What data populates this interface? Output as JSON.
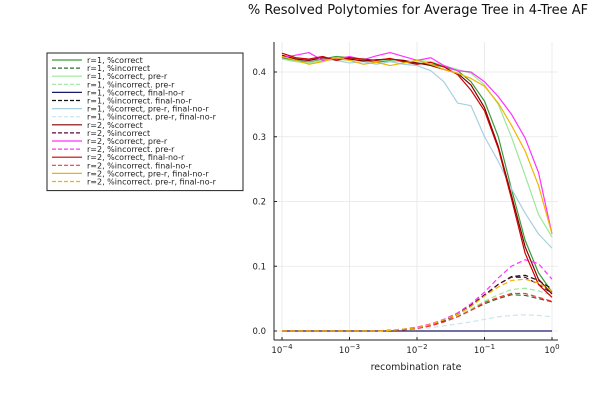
{
  "chart_data": {
    "type": "line",
    "title": "% Resolved Polytomies for Average Tree in 4-Tree AF",
    "xlabel": "recombination rate",
    "ylabel": "",
    "xscale": "log10",
    "xlim": [
      0.0001,
      1
    ],
    "ylim": [
      0,
      0.43
    ],
    "xticks": [
      {
        "value": 0.0001,
        "base": "10",
        "exp": "−4"
      },
      {
        "value": 0.001,
        "base": "10",
        "exp": "−3"
      },
      {
        "value": 0.01,
        "base": "10",
        "exp": "−2"
      },
      {
        "value": 0.1,
        "base": "10",
        "exp": "−1"
      },
      {
        "value": 1,
        "base": "10",
        "exp": "0"
      }
    ],
    "yticks": [
      "0.0",
      "0.1",
      "0.2",
      "0.3",
      "0.4"
    ],
    "ytick_values": [
      0,
      0.1,
      0.2,
      0.3,
      0.4
    ],
    "grid": true,
    "legend_position": "outside-left",
    "x": [
      0.0001,
      0.00016,
      0.00025,
      0.0004,
      0.00063,
      0.001,
      0.0016,
      0.0025,
      0.004,
      0.0063,
      0.01,
      0.016,
      0.025,
      0.04,
      0.063,
      0.1,
      0.16,
      0.25,
      0.4,
      0.63,
      1
    ],
    "series": [
      {
        "name": "r=1, %correct",
        "color": "#3a9a3a",
        "dash": "solid",
        "values": [
          0.422,
          0.418,
          0.416,
          0.42,
          0.424,
          0.422,
          0.418,
          0.415,
          0.418,
          0.416,
          0.414,
          0.412,
          0.408,
          0.402,
          0.385,
          0.355,
          0.3,
          0.22,
          0.14,
          0.09,
          0.06
        ]
      },
      {
        "name": "r=1, %incorrect",
        "color": "#2e6b2e",
        "dash": "dashed",
        "values": [
          0.0,
          0.0,
          0.0,
          0.0,
          0.0,
          0.0,
          0.0,
          0.0,
          0.001,
          0.002,
          0.004,
          0.008,
          0.014,
          0.022,
          0.032,
          0.042,
          0.05,
          0.056,
          0.055,
          0.05,
          0.045
        ]
      },
      {
        "name": "r=1, %correct, pre-r",
        "color": "#9be89b",
        "dash": "solid",
        "values": [
          0.42,
          0.416,
          0.414,
          0.418,
          0.42,
          0.418,
          0.421,
          0.417,
          0.419,
          0.415,
          0.418,
          0.416,
          0.41,
          0.404,
          0.398,
          0.38,
          0.35,
          0.3,
          0.24,
          0.18,
          0.145
        ]
      },
      {
        "name": "r=1, %incorrect. pre-r",
        "color": "#9be89b",
        "dash": "dashed",
        "values": [
          0.0,
          0.0,
          0.0,
          0.0,
          0.0,
          0.0,
          0.0,
          0.0,
          0.001,
          0.003,
          0.006,
          0.01,
          0.016,
          0.024,
          0.034,
          0.046,
          0.056,
          0.064,
          0.066,
          0.062,
          0.055
        ]
      },
      {
        "name": "r=1, %correct, final-no-r",
        "color": "#1a1a6e",
        "dash": "solid",
        "values": [
          0,
          0,
          0,
          0,
          0,
          0,
          0,
          0,
          0,
          0,
          0,
          0,
          0,
          0,
          0,
          0,
          0,
          0,
          0,
          0,
          0
        ]
      },
      {
        "name": "r=1, %incorrect. final-no-r",
        "color": "#111111",
        "dash": "dashed",
        "values": [
          0.0,
          0.0,
          0.0,
          0.0,
          0.0,
          0.0,
          0.0,
          0.0,
          0.001,
          0.002,
          0.004,
          0.009,
          0.016,
          0.026,
          0.038,
          0.055,
          0.072,
          0.084,
          0.086,
          0.078,
          0.065
        ]
      },
      {
        "name": "r=1, %correct, pre-r, final-no-r",
        "color": "#a8cfe0",
        "dash": "solid",
        "values": [
          0.424,
          0.42,
          0.417,
          0.421,
          0.418,
          0.414,
          0.416,
          0.412,
          0.416,
          0.412,
          0.41,
          0.402,
          0.385,
          0.352,
          0.348,
          0.3,
          0.262,
          0.22,
          0.182,
          0.15,
          0.128
        ]
      },
      {
        "name": "r=1, %incorrect. pre-r, final-no-r",
        "color": "#c8e6f0",
        "dash": "dashed",
        "values": [
          0.0,
          0.0,
          0.0,
          0.0,
          0.0,
          0.0,
          0.0,
          0.0,
          0.001,
          0.002,
          0.003,
          0.005,
          0.008,
          0.011,
          0.014,
          0.018,
          0.022,
          0.024,
          0.025,
          0.024,
          0.022
        ]
      },
      {
        "name": "r=2, %correct",
        "color": "#800000",
        "dash": "solid",
        "values": [
          0.426,
          0.42,
          0.418,
          0.422,
          0.42,
          0.42,
          0.417,
          0.419,
          0.42,
          0.418,
          0.414,
          0.41,
          0.404,
          0.398,
          0.38,
          0.345,
          0.285,
          0.21,
          0.13,
          0.08,
          0.057
        ]
      },
      {
        "name": "r=2, %incorrect",
        "color": "#5a0a3a",
        "dash": "dashed",
        "values": [
          0.0,
          0.0,
          0.0,
          0.0,
          0.0,
          0.0,
          0.0,
          0.0,
          0.001,
          0.002,
          0.004,
          0.009,
          0.016,
          0.027,
          0.04,
          0.056,
          0.072,
          0.083,
          0.083,
          0.072,
          0.058
        ]
      },
      {
        "name": "r=2, %correct, pre-r",
        "color": "#ff33ff",
        "dash": "solid",
        "values": [
          0.422,
          0.426,
          0.43,
          0.418,
          0.42,
          0.424,
          0.419,
          0.425,
          0.43,
          0.424,
          0.418,
          0.422,
          0.41,
          0.402,
          0.4,
          0.385,
          0.362,
          0.335,
          0.298,
          0.245,
          0.15
        ]
      },
      {
        "name": "r=2, %incorrect. pre-r",
        "color": "#ff33ff",
        "dash": "dashed",
        "values": [
          0.0,
          0.0,
          0.0,
          0.0,
          0.0,
          0.0,
          0.0,
          0.0,
          0.001,
          0.003,
          0.006,
          0.011,
          0.018,
          0.028,
          0.042,
          0.06,
          0.082,
          0.1,
          0.11,
          0.104,
          0.08
        ]
      },
      {
        "name": "r=2, %correct, final-no-r",
        "color": "#cc0000",
        "dash": "solid",
        "values": [
          0.429,
          0.422,
          0.42,
          0.424,
          0.418,
          0.422,
          0.42,
          0.418,
          0.421,
          0.416,
          0.412,
          0.415,
          0.408,
          0.396,
          0.372,
          0.34,
          0.282,
          0.205,
          0.12,
          0.072,
          0.052
        ]
      },
      {
        "name": "r=2, %incorrect. final-no-r",
        "color": "#ff3333",
        "dash": "dashed",
        "values": [
          0.0,
          0.0,
          0.0,
          0.0,
          0.0,
          0.0,
          0.0,
          0.0,
          0.001,
          0.002,
          0.004,
          0.008,
          0.014,
          0.022,
          0.032,
          0.044,
          0.052,
          0.058,
          0.058,
          0.052,
          0.046
        ]
      },
      {
        "name": "r=2, %correct, pre-r, final-no-r",
        "color": "#f0b400",
        "dash": "solid",
        "values": [
          0.424,
          0.418,
          0.412,
          0.416,
          0.422,
          0.418,
          0.412,
          0.415,
          0.41,
          0.414,
          0.418,
          0.412,
          0.404,
          0.398,
          0.39,
          0.378,
          0.352,
          0.318,
          0.278,
          0.225,
          0.15
        ]
      },
      {
        "name": "r=2, %incorrect. pre-r, final-no-r",
        "color": "#f0b400",
        "dash": "dashed",
        "values": [
          0.0,
          0.0,
          0.0,
          0.0,
          0.0,
          0.0,
          0.0,
          0.0,
          0.001,
          0.003,
          0.005,
          0.01,
          0.017,
          0.026,
          0.038,
          0.054,
          0.068,
          0.078,
          0.08,
          0.074,
          0.062
        ]
      }
    ]
  }
}
